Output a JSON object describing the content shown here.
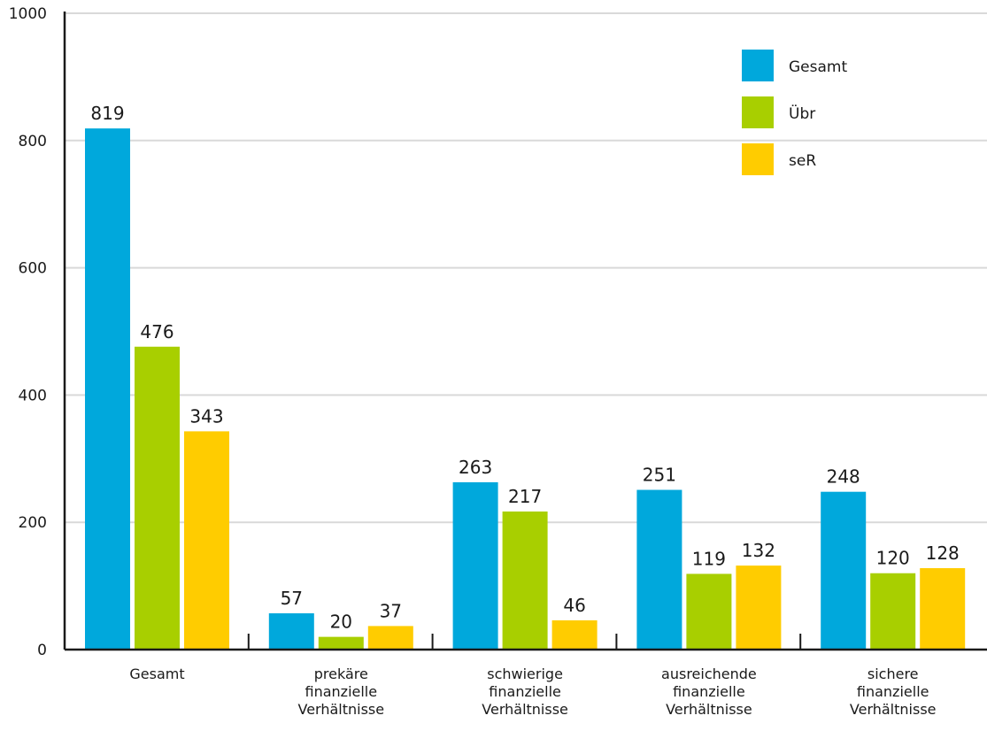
{
  "chart_data": {
    "type": "bar",
    "categories": [
      [
        "Gesamt"
      ],
      [
        "prekäre",
        "finanzielle",
        "Verhältnisse"
      ],
      [
        "schwierige",
        "finanzielle",
        "Verhältnisse"
      ],
      [
        "ausreichende",
        "finanzielle",
        "Verhältnisse"
      ],
      [
        "sichere",
        "finanzielle",
        "Verhältnisse"
      ]
    ],
    "series": [
      {
        "name": "Gesamt",
        "color": "#00a8dc",
        "values": [
          819,
          57,
          263,
          251,
          248
        ]
      },
      {
        "name": "Übr",
        "color": "#a8cf00",
        "values": [
          476,
          20,
          217,
          119,
          120
        ]
      },
      {
        "name": "seR",
        "color": "#ffcc00",
        "values": [
          343,
          37,
          46,
          132,
          128
        ]
      }
    ],
    "ylim": [
      0,
      1000
    ],
    "yticks": [
      0,
      200,
      400,
      600,
      800,
      1000
    ],
    "grid": true,
    "legend_position": "top-right",
    "title": "",
    "xlabel": "",
    "ylabel": ""
  }
}
